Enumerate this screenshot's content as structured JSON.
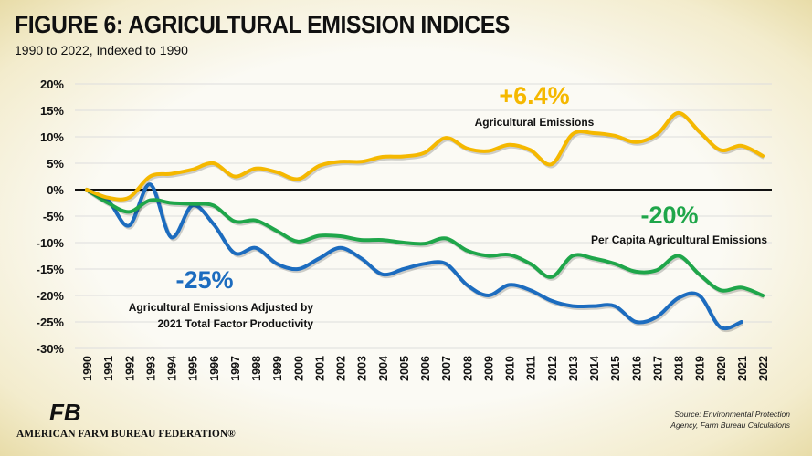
{
  "title": "FIGURE 6: AGRICULTURAL EMISSION INDICES",
  "subtitle": "1990 to 2022, Indexed to 1990",
  "source": "Source: Environmental Protection Agency, Farm Bureau Calculations",
  "logo": {
    "mark": "FB",
    "name": "AMERICAN FARM BUREAU FEDERATION®"
  },
  "chart_data": {
    "type": "line",
    "title": "FIGURE 6: AGRICULTURAL EMISSION INDICES",
    "subtitle": "1990 to 2022, Indexed to 1990",
    "ylim": [
      -30,
      20
    ],
    "yticks": [
      20,
      15,
      10,
      5,
      0,
      -5,
      -10,
      -15,
      -20,
      -25,
      -30
    ],
    "ytick_labels": [
      "20%",
      "15%",
      "10%",
      "5%",
      "0%",
      "-5%",
      "-10%",
      "-15%",
      "-20%",
      "-25%",
      "-30%"
    ],
    "grid": true,
    "x": [
      1990,
      1991,
      1992,
      1993,
      1994,
      1995,
      1996,
      1997,
      1998,
      1999,
      2000,
      2001,
      2002,
      2003,
      2004,
      2005,
      2006,
      2007,
      2008,
      2009,
      2010,
      2011,
      2012,
      2013,
      2014,
      2015,
      2016,
      2017,
      2018,
      2019,
      2020,
      2021,
      2022
    ],
    "series": [
      {
        "name": "Agricultural Emissions",
        "color": "#f5b800",
        "label": "+6.4%",
        "values": [
          0,
          -1.5,
          -1.5,
          2.5,
          3,
          3.8,
          5,
          2.5,
          4,
          3.3,
          2,
          4.5,
          5.3,
          5.3,
          6.2,
          6.3,
          7,
          9.8,
          7.8,
          7.3,
          8.5,
          7.5,
          4.8,
          10.5,
          10.7,
          10.2,
          9,
          10.5,
          14.5,
          11,
          7.5,
          8.3,
          6.4
        ]
      },
      {
        "name": "Per Capita Agricultural Emissions",
        "color": "#1fa64a",
        "label": "-20%",
        "values": [
          0,
          -2.5,
          -4.2,
          -2,
          -2.5,
          -2.7,
          -3,
          -6,
          -5.8,
          -7.8,
          -9.8,
          -8.7,
          -8.8,
          -9.5,
          -9.5,
          -10,
          -10.2,
          -9.2,
          -11.5,
          -12.5,
          -12.3,
          -14,
          -16.5,
          -12.5,
          -13,
          -14,
          -15.5,
          -15.2,
          -12.5,
          -16,
          -19,
          -18.5,
          -20
        ]
      },
      {
        "name": "Agricultural Emissions Adjusted by 2021 Total Factor Productivity",
        "name_lines": [
          "Agricultural Emissions Adjusted by",
          "2021 Total Factor Productivity"
        ],
        "color": "#1c6cbf",
        "label": "-25%",
        "values": [
          0,
          -2,
          -6.8,
          1,
          -9,
          -3,
          -6.5,
          -12,
          -11,
          -14,
          -15,
          -13,
          -11,
          -13,
          -16,
          -15,
          -14,
          -14,
          -18,
          -20,
          -18,
          -19,
          -21,
          -22,
          -22,
          -22,
          -25,
          -24,
          -20.5,
          -20,
          -26,
          -25,
          null
        ]
      }
    ]
  }
}
